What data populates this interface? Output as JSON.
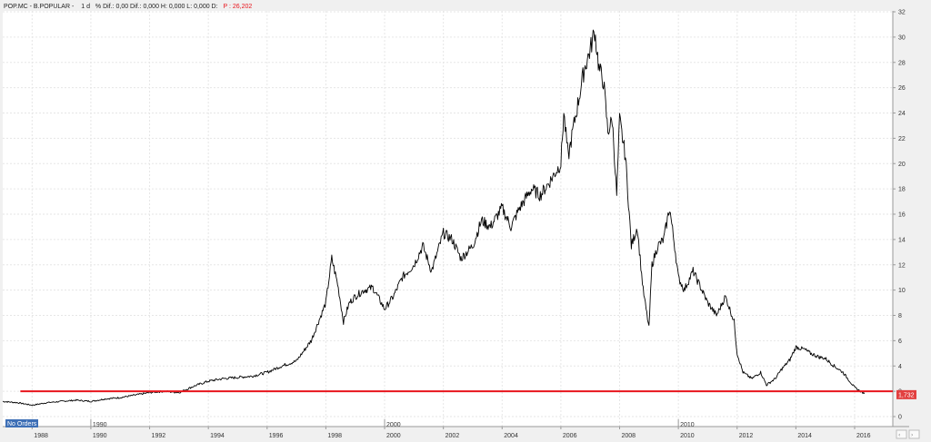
{
  "header": {
    "ticker": "POP.MC - B.POPULAR -",
    "interval": "1 d",
    "stats": "% Dif.: 0,00  Dif.: 0,000  H: 0,000  L: 0,000  D:",
    "price_label": "P : 26,202"
  },
  "badge": {
    "label": "No Orders"
  },
  "last_price": "1,732",
  "colors": {
    "line": "#000000",
    "support": "#e8141c",
    "price_tag": "#e24040",
    "badge": "#3d6fb6",
    "title_price": "#e8141c"
  },
  "chart_data": {
    "type": "line",
    "title": "POP.MC - B.POPULAR -",
    "ylim": [
      0,
      32
    ],
    "xlim": [
      1987.0,
      2017.3
    ],
    "y_ticks": [
      0,
      2,
      4,
      6,
      8,
      10,
      12,
      14,
      16,
      18,
      20,
      22,
      24,
      26,
      28,
      30,
      32
    ],
    "x_ticks": [
      "1988",
      "1990",
      "1992",
      "1994",
      "1996",
      "1998",
      "2000",
      "2002",
      "2004",
      "2006",
      "2008",
      "2010",
      "2012",
      "2014",
      "2016"
    ],
    "x_tick_values": [
      1988,
      1990,
      1992,
      1994,
      1996,
      1998,
      2000,
      2002,
      2004,
      2006,
      2008,
      2010,
      2012,
      2014,
      2016
    ],
    "decade_labels": [
      "1990",
      "2000",
      "2010"
    ],
    "decade_values": [
      1990,
      2000,
      2010
    ],
    "grid": true,
    "series": [
      {
        "x": [
          1987.0,
          1987.5,
          1988.0,
          1988.5,
          1989.0,
          1989.5,
          1990.0,
          1990.5,
          1991.0,
          1991.5,
          1992.0,
          1992.5,
          1993.0,
          1993.5,
          1994.0,
          1994.5,
          1995.0,
          1995.5,
          1996.0,
          1996.5,
          1997.0,
          1997.25,
          1997.5,
          1997.75,
          1998.0,
          1998.2,
          1998.4,
          1998.6,
          1998.8,
          1999.0,
          1999.3,
          1999.6,
          2000.0,
          2000.3,
          2000.6,
          2001.0,
          2001.3,
          2001.6,
          2002.0,
          2002.3,
          2002.6,
          2003.0,
          2003.3,
          2003.6,
          2004.0,
          2004.3,
          2004.6,
          2005.0,
          2005.3,
          2005.6,
          2006.0,
          2006.1,
          2006.25,
          2006.4,
          2006.6,
          2006.8,
          2007.0,
          2007.15,
          2007.3,
          2007.45,
          2007.6,
          2007.75,
          2007.9,
          2008.0,
          2008.2,
          2008.4,
          2008.6,
          2008.8,
          2009.0,
          2009.1,
          2009.3,
          2009.5,
          2009.7,
          2009.9,
          2010.0,
          2010.2,
          2010.5,
          2010.8,
          2011.0,
          2011.3,
          2011.6,
          2011.9,
          2012.0,
          2012.2,
          2012.5,
          2012.8,
          2013.0,
          2013.3,
          2013.5,
          2013.8,
          2014.0,
          2014.3,
          2014.5,
          2014.8,
          2015.0,
          2015.3,
          2015.6,
          2015.9,
          2016.0,
          2016.2,
          2016.33
        ],
        "y": [
          1.2,
          1.1,
          0.9,
          1.1,
          1.2,
          1.3,
          1.2,
          1.4,
          1.5,
          1.7,
          1.9,
          2.0,
          1.9,
          2.4,
          2.8,
          3.0,
          3.1,
          3.2,
          3.5,
          4.0,
          4.4,
          5.2,
          6.0,
          7.5,
          9.0,
          12.5,
          10.5,
          7.5,
          9.0,
          9.5,
          10.0,
          10.2,
          8.5,
          9.5,
          11.0,
          12.0,
          13.5,
          11.5,
          14.5,
          14.0,
          12.5,
          13.5,
          15.5,
          15.0,
          16.5,
          15.0,
          16.5,
          18.0,
          17.5,
          18.5,
          20.0,
          24.0,
          20.5,
          22.5,
          25.0,
          27.5,
          29.0,
          30.5,
          27.5,
          26.5,
          22.5,
          23.5,
          17.5,
          23.5,
          20.5,
          13.5,
          15.0,
          10.0,
          7.0,
          12.0,
          13.5,
          14.0,
          16.5,
          13.0,
          11.0,
          10.0,
          11.5,
          10.0,
          9.0,
          8.0,
          9.5,
          7.5,
          5.0,
          3.5,
          3.0,
          3.5,
          2.5,
          3.0,
          3.7,
          4.5,
          5.5,
          5.3,
          5.0,
          4.7,
          4.6,
          4.0,
          3.5,
          2.6,
          2.3,
          2.0,
          1.8
        ]
      }
    ],
    "support_level": 2.0,
    "last_value": 1.732
  }
}
